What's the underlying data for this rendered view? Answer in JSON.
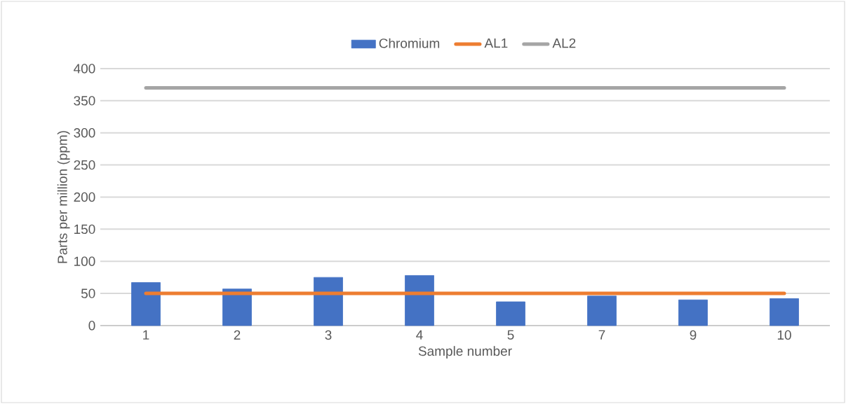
{
  "chart_data": {
    "type": "bar",
    "xlabel": "Sample number",
    "ylabel": "Parts per million (ppm)",
    "categories": [
      "1",
      "2",
      "3",
      "4",
      "5",
      "7",
      "9",
      "10"
    ],
    "series": [
      {
        "name": "Chromium",
        "color": "#4472c4",
        "values": [
          67,
          57,
          75,
          78,
          37,
          46,
          40,
          42
        ]
      },
      {
        "name": "AL1",
        "type": "line",
        "color": "#ed7d31",
        "values": [
          50,
          50,
          50,
          50,
          50,
          50,
          50,
          50
        ]
      },
      {
        "name": "AL2",
        "type": "line",
        "color": "#a5a5a5",
        "values": [
          370,
          370,
          370,
          370,
          370,
          370,
          370,
          370
        ]
      }
    ],
    "ylim": [
      0,
      400
    ],
    "yticks": [
      0,
      50,
      100,
      150,
      200,
      250,
      300,
      350,
      400
    ],
    "grid": "y",
    "legend": "top",
    "marker": "none"
  }
}
